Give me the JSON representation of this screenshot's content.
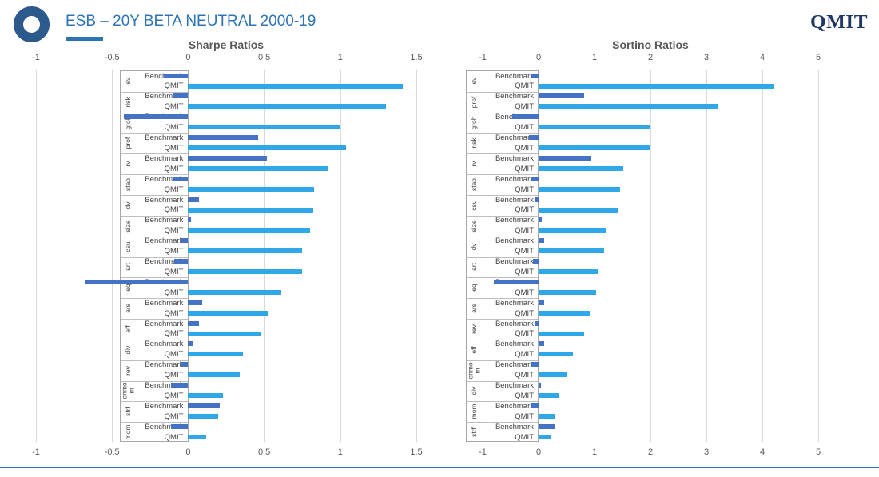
{
  "header": {
    "title": "ESB – 20Y BETA NEUTRAL 2000-19",
    "brand": "QMIT"
  },
  "colors": {
    "benchmark_bar": "#4472C4",
    "qmit_bar": "#2EA8E8",
    "title_blue": "#2E74B5",
    "brand_navy": "#1F3864",
    "logo_ring": "#2C5A8C",
    "chart_title_gray": "#595959",
    "axis_text": "#595959",
    "label_text": "#404040",
    "gridline": "#D9D9D9",
    "box_border": "#A6A6A6",
    "separator": "#BFBFBF",
    "footer_line": "#2E74B5"
  },
  "chart_data": [
    {
      "type": "bar",
      "orientation": "horizontal",
      "title": "Sharpe Ratios",
      "xlim": [
        -1,
        1.5
      ],
      "tick_values": [
        -1,
        -0.5,
        0,
        0.5,
        1,
        1.5
      ],
      "tick_labels": [
        "-1",
        "-0.5",
        "0",
        "0.5",
        "1",
        "1.5"
      ],
      "grid": true,
      "legend": "none",
      "categories": [
        "lev",
        "risk",
        "groh",
        "prof",
        "rv",
        "stab",
        "dv",
        "size",
        "csu",
        "art",
        "eq",
        "ars",
        "eff",
        "div",
        "rev",
        "enmom",
        "strf",
        "mom"
      ],
      "series": [
        {
          "name": "Benchmark",
          "values": [
            -0.16,
            -0.1,
            -0.42,
            0.46,
            0.52,
            -0.1,
            0.07,
            0.02,
            -0.05,
            -0.09,
            -0.68,
            0.09,
            0.07,
            0.03,
            -0.05,
            -0.11,
            0.21,
            -0.11
          ]
        },
        {
          "name": "QMIT",
          "values": [
            1.41,
            1.3,
            1.0,
            1.04,
            0.92,
            0.83,
            0.82,
            0.8,
            0.75,
            0.75,
            0.61,
            0.53,
            0.48,
            0.36,
            0.34,
            0.23,
            0.2,
            0.12
          ]
        }
      ]
    },
    {
      "type": "bar",
      "orientation": "horizontal",
      "title": "Sortino Ratios",
      "xlim": [
        -1,
        5
      ],
      "tick_values": [
        -1,
        0,
        1,
        2,
        3,
        4,
        5
      ],
      "tick_labels": [
        "-1",
        "0",
        "1",
        "2",
        "3",
        "4",
        "5"
      ],
      "grid": true,
      "legend": "none",
      "categories": [
        "lev",
        "prof",
        "groh",
        "risk",
        "rv",
        "stab",
        "csu",
        "size",
        "dv",
        "art",
        "eq",
        "ars",
        "rev",
        "eff",
        "enmom",
        "div",
        "mom",
        "strf"
      ],
      "series": [
        {
          "name": "Benchmark",
          "values": [
            -0.15,
            0.81,
            -0.47,
            -0.17,
            0.93,
            -0.15,
            -0.06,
            0.05,
            0.1,
            -0.1,
            -0.8,
            0.1,
            -0.06,
            0.1,
            -0.15,
            0.04,
            -0.14,
            0.29
          ]
        },
        {
          "name": "QMIT",
          "values": [
            4.2,
            3.2,
            2.0,
            2.0,
            1.52,
            1.46,
            1.42,
            1.2,
            1.17,
            1.05,
            1.03,
            0.91,
            0.82,
            0.61,
            0.52,
            0.36,
            0.29,
            0.23
          ]
        }
      ]
    }
  ]
}
